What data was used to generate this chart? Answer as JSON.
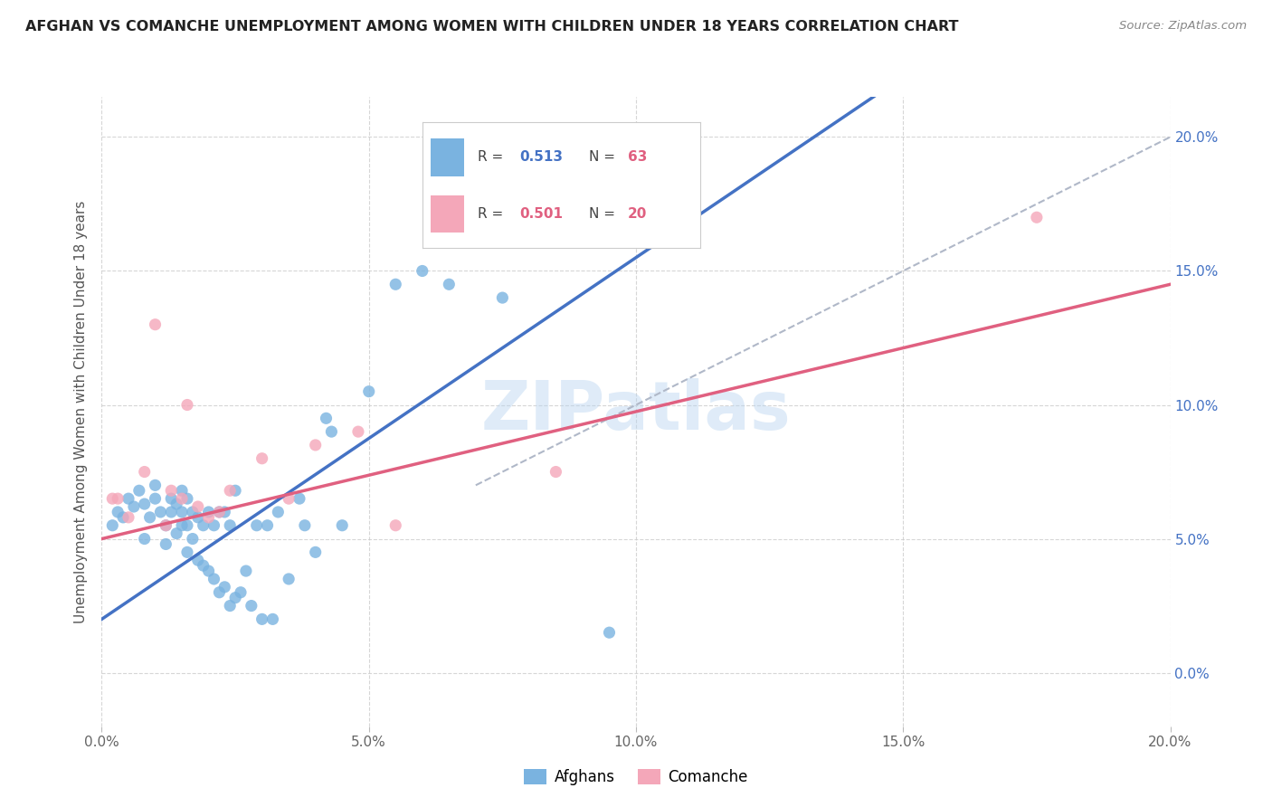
{
  "title": "AFGHAN VS COMANCHE UNEMPLOYMENT AMONG WOMEN WITH CHILDREN UNDER 18 YEARS CORRELATION CHART",
  "source": "Source: ZipAtlas.com",
  "ylabel": "Unemployment Among Women with Children Under 18 years",
  "watermark": "ZIPatlas",
  "xlim": [
    0.0,
    0.2
  ],
  "ylim": [
    -0.02,
    0.215
  ],
  "yticks": [
    0.0,
    0.05,
    0.1,
    0.15,
    0.2
  ],
  "xticks": [
    0.0,
    0.05,
    0.1,
    0.15,
    0.2
  ],
  "afghan_color": "#7ab3e0",
  "comanche_color": "#f4a7b9",
  "afghan_R": 0.513,
  "afghan_N": 63,
  "comanche_R": 0.501,
  "comanche_N": 20,
  "afghan_line_color": "#4472c4",
  "comanche_line_color": "#e06080",
  "dashed_line_color": "#b0b8c8",
  "afghan_x": [
    0.002,
    0.003,
    0.004,
    0.005,
    0.006,
    0.007,
    0.008,
    0.008,
    0.009,
    0.01,
    0.01,
    0.011,
    0.012,
    0.012,
    0.013,
    0.013,
    0.014,
    0.014,
    0.015,
    0.015,
    0.015,
    0.016,
    0.016,
    0.016,
    0.017,
    0.017,
    0.018,
    0.018,
    0.019,
    0.019,
    0.02,
    0.02,
    0.021,
    0.021,
    0.022,
    0.022,
    0.023,
    0.023,
    0.024,
    0.024,
    0.025,
    0.025,
    0.026,
    0.027,
    0.028,
    0.029,
    0.03,
    0.031,
    0.032,
    0.033,
    0.035,
    0.037,
    0.038,
    0.04,
    0.042,
    0.043,
    0.045,
    0.05,
    0.055,
    0.06,
    0.065,
    0.075,
    0.095
  ],
  "afghan_y": [
    0.055,
    0.06,
    0.058,
    0.065,
    0.062,
    0.068,
    0.063,
    0.05,
    0.058,
    0.065,
    0.07,
    0.06,
    0.048,
    0.055,
    0.06,
    0.065,
    0.052,
    0.063,
    0.055,
    0.06,
    0.068,
    0.045,
    0.055,
    0.065,
    0.05,
    0.06,
    0.042,
    0.058,
    0.04,
    0.055,
    0.038,
    0.06,
    0.035,
    0.055,
    0.03,
    0.06,
    0.032,
    0.06,
    0.025,
    0.055,
    0.028,
    0.068,
    0.03,
    0.038,
    0.025,
    0.055,
    0.02,
    0.055,
    0.02,
    0.06,
    0.035,
    0.065,
    0.055,
    0.045,
    0.095,
    0.09,
    0.055,
    0.105,
    0.145,
    0.15,
    0.145,
    0.14,
    0.015
  ],
  "comanche_x": [
    0.002,
    0.003,
    0.005,
    0.008,
    0.01,
    0.012,
    0.013,
    0.015,
    0.016,
    0.018,
    0.02,
    0.022,
    0.024,
    0.03,
    0.035,
    0.04,
    0.048,
    0.055,
    0.085,
    0.175
  ],
  "comanche_y": [
    0.065,
    0.065,
    0.058,
    0.075,
    0.13,
    0.055,
    0.068,
    0.065,
    0.1,
    0.062,
    0.058,
    0.06,
    0.068,
    0.08,
    0.065,
    0.085,
    0.09,
    0.055,
    0.075,
    0.17
  ]
}
